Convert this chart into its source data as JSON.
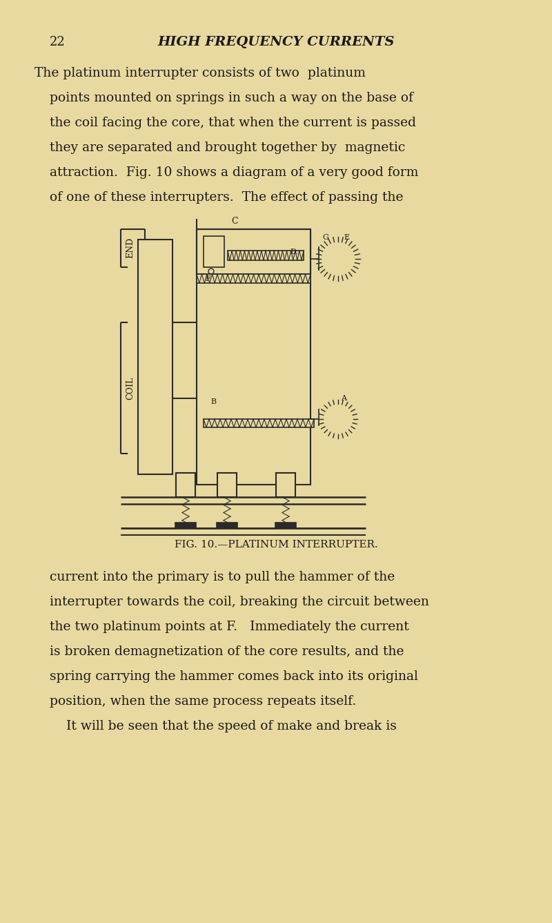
{
  "bg_color": "#e8d9a0",
  "text_color": "#1a1a1a",
  "page_number": "22",
  "header_title": "HIGH FREQUENCY CURRENTS",
  "paragraph1": "The platinum interrupter consists of two  platinum\npoints mounted on springs in such a way on the base of\nthe coil facing the core, that when the current is passed\nthey are separated and brought together by  magnetic\nattraction.  Fig. 10 shows a diagram of a very good form\nof one of these interrupters.  The effect of passing the",
  "caption": "FIG. 10.—PLATINUM INTERRUPTER.",
  "paragraph2": "current into the primary is to pull the hammer of the\ninterrupter towards the coil, breaking the circuit between\nthe two platinum points at F.   Immediately the current\nis broken demagnetization of the core results, and the\nspring carrying the hammer comes back into its original\nposition, when the same process repeats itself.\n    It will be seen that the speed of make and break is",
  "line_color": "#2a2a2a",
  "diagram_labels": [
    "C",
    "D",
    "F",
    "G",
    "E",
    "B",
    "A",
    "END",
    "COIL"
  ]
}
